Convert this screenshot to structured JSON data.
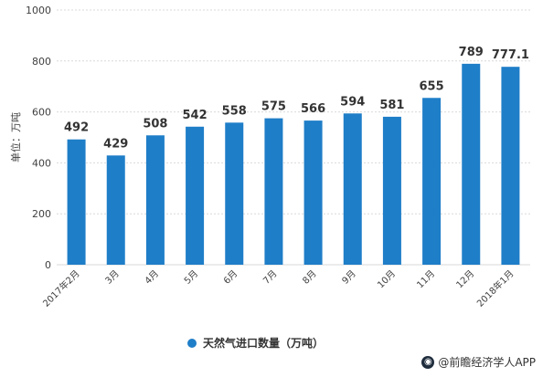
{
  "chart_data": {
    "type": "bar",
    "categories": [
      "2017年2月",
      "3月",
      "4月",
      "5月",
      "6月",
      "7月",
      "8月",
      "9月",
      "10月",
      "11月",
      "12月",
      "2018年1月"
    ],
    "data_labels": [
      "492",
      "429",
      "508",
      "542",
      "558",
      "575",
      "566",
      "594",
      "581",
      "655",
      "789",
      "777.1"
    ],
    "series": [
      {
        "name": "天然气进口数量（万吨）",
        "values": [
          492,
          429,
          508,
          542,
          558,
          575,
          566,
          594,
          581,
          655,
          789,
          777.1
        ]
      }
    ],
    "ylabel": "单位：万吨",
    "ylim": [
      0,
      1000
    ],
    "yticks": [
      "0",
      "200",
      "400",
      "600",
      "800",
      "1000"
    ],
    "grid": true,
    "legend": "bottom-center",
    "colors": {
      "bar": "#1f7ec8",
      "grid": "#d9d9d9",
      "axis_text": "#404040",
      "label_text": "#333333"
    }
  },
  "footer": {
    "credit": "@前瞻经济学人APP"
  }
}
